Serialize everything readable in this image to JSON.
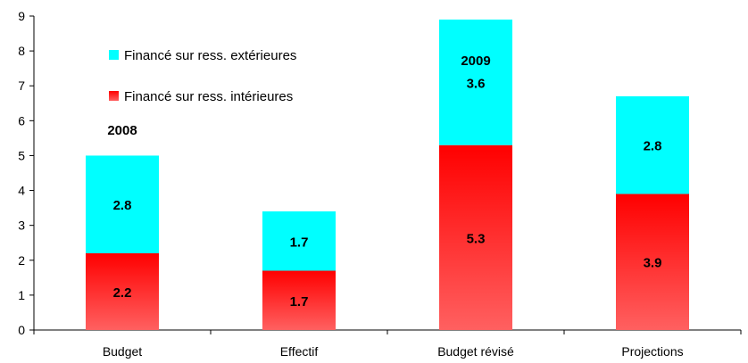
{
  "chart_data": {
    "type": "bar",
    "stacked": true,
    "categories": [
      "Budget",
      "Effectif",
      "Budget révisé",
      "Projections"
    ],
    "series": [
      {
        "name": "Financé sur ress. intérieures",
        "values": [
          2.2,
          1.7,
          5.3,
          3.9
        ],
        "color": "#ff2a2a"
      },
      {
        "name": "Financé sur ress. extérieures",
        "values": [
          2.8,
          1.7,
          3.6,
          2.8
        ],
        "color": "#00ffff"
      }
    ],
    "legend_order": [
      1,
      0
    ],
    "legend_position": "top-left",
    "ylim": [
      0,
      9
    ],
    "yticks": [
      0,
      1,
      2,
      3,
      4,
      5,
      6,
      7,
      8,
      9
    ],
    "ytick_labels": [
      "0",
      "1",
      "2",
      "3",
      "4",
      "5",
      "6",
      "7",
      "8",
      "9"
    ],
    "grid": false,
    "annotations": [
      {
        "text": "2008",
        "x": 0.5,
        "y": 5.6
      },
      {
        "text": "2009",
        "x": 2.5,
        "y": 7.6
      }
    ],
    "title": "",
    "xlabel": "",
    "ylabel": ""
  }
}
